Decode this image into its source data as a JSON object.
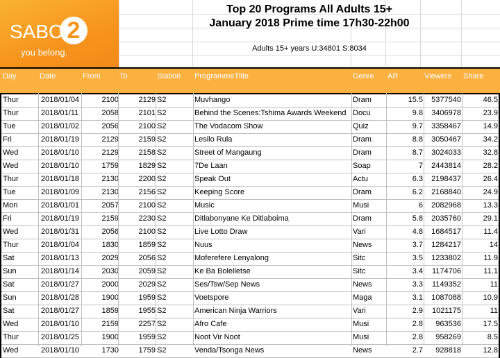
{
  "logo": {
    "brand": "SABC",
    "number": "2",
    "tagline": "you belong."
  },
  "title": {
    "line1": "Top 20 Programs All Adults 15+",
    "line2": "January 2018 Prime time 17h30-22h00",
    "subtitle": "Adults 15+ years U:34801 S:8034"
  },
  "columns": [
    "Day",
    "Date",
    "From",
    "To",
    "Station",
    "ProgrammeTitle",
    "Genre",
    "AR",
    "Viewers",
    "Share"
  ],
  "colors": {
    "header_bg": "#fbb040",
    "logo_orange": "#f7941d"
  },
  "rows": [
    {
      "day": "Thur",
      "date": "2018/01/04",
      "from": "2100",
      "to": "2129",
      "station": "S2",
      "title": "Muvhango",
      "genre": "Dram",
      "ar": "15.5",
      "viewers": "5377540",
      "share": "46.5"
    },
    {
      "day": "Thur",
      "date": "2018/01/11",
      "from": "2058",
      "to": "2101",
      "station": "S2",
      "title": "Behind the Scenes:Tshima Awards Weekend",
      "genre": "Docu",
      "ar": "9.8",
      "viewers": "3406978",
      "share": "23.9"
    },
    {
      "day": "Tue",
      "date": "2018/01/02",
      "from": "2056",
      "to": "2100",
      "station": "S2",
      "title": "The Vodacom Show",
      "genre": "Quiz",
      "ar": "9.7",
      "viewers": "3358467",
      "share": "14.9"
    },
    {
      "day": "Fri",
      "date": "2018/01/19",
      "from": "2129",
      "to": "2159",
      "station": "S2",
      "title": "Lesilo Rula",
      "genre": "Dram",
      "ar": "8.8",
      "viewers": "3050467",
      "share": "34.2"
    },
    {
      "day": "Wed",
      "date": "2018/01/10",
      "from": "2129",
      "to": "2158",
      "station": "S2",
      "title": "Street of Mangaung",
      "genre": "Dram",
      "ar": "8.7",
      "viewers": "3024033",
      "share": "32.8"
    },
    {
      "day": "Wed",
      "date": "2018/01/10",
      "from": "1759",
      "to": "1829",
      "station": "S2",
      "title": "7De Laan",
      "genre": "Soap",
      "ar": "7",
      "viewers": "2443814",
      "share": "28.2"
    },
    {
      "day": "Thur",
      "date": "2018/01/18",
      "from": "2130",
      "to": "2200",
      "station": "S2",
      "title": "Speak Out",
      "genre": "Actu",
      "ar": "6.3",
      "viewers": "2198437",
      "share": "26.4"
    },
    {
      "day": "Tue",
      "date": "2018/01/09",
      "from": "2130",
      "to": "2156",
      "station": "S2",
      "title": "Keeping Score",
      "genre": "Dram",
      "ar": "6.2",
      "viewers": "2168840",
      "share": "24.9"
    },
    {
      "day": "Mon",
      "date": "2018/01/01",
      "from": "2057",
      "to": "2100",
      "station": "S2",
      "title": "Music",
      "genre": "Musi",
      "ar": "6",
      "viewers": "2082968",
      "share": "13.3"
    },
    {
      "day": "Fri",
      "date": "2018/01/19",
      "from": "2159",
      "to": "2230",
      "station": "S2",
      "title": "Ditlabonyane Ke Ditlaboima",
      "genre": "Dram",
      "ar": "5.8",
      "viewers": "2035760",
      "share": "29.1"
    },
    {
      "day": "Wed",
      "date": "2018/01/31",
      "from": "2056",
      "to": "2100",
      "station": "S2",
      "title": "Live Lotto Draw",
      "genre": "Vari",
      "ar": "4.8",
      "viewers": "1684517",
      "share": "11.4"
    },
    {
      "day": "Thur",
      "date": "2018/01/04",
      "from": "1830",
      "to": "1859",
      "station": "S2",
      "title": "Nuus",
      "genre": "News",
      "ar": "3.7",
      "viewers": "1284217",
      "share": "14"
    },
    {
      "day": "Sat",
      "date": "2018/01/13",
      "from": "2029",
      "to": "2056",
      "station": "S2",
      "title": "Moferefere Lenyalong",
      "genre": "Sitc",
      "ar": "3.5",
      "viewers": "1233802",
      "share": "11.9"
    },
    {
      "day": "Sun",
      "date": "2018/01/14",
      "from": "2030",
      "to": "2059",
      "station": "S2",
      "title": "Ke Ba Bolelletse",
      "genre": "Sitc",
      "ar": "3.4",
      "viewers": "1174706",
      "share": "11.1"
    },
    {
      "day": "Sat",
      "date": "2018/01/27",
      "from": "2000",
      "to": "2029",
      "station": "S2",
      "title": "Ses/Tsw/Sep News",
      "genre": "News",
      "ar": "3.3",
      "viewers": "1149352",
      "share": "11"
    },
    {
      "day": "Sun",
      "date": "2018/01/28",
      "from": "1900",
      "to": "1959",
      "station": "S2",
      "title": "Voetspore",
      "genre": "Maga",
      "ar": "3.1",
      "viewers": "1087088",
      "share": "10.9"
    },
    {
      "day": "Sat",
      "date": "2018/01/27",
      "from": "1859",
      "to": "1955",
      "station": "S2",
      "title": "American Ninja Warriors",
      "genre": "Vari",
      "ar": "2.9",
      "viewers": "1021175",
      "share": "11"
    },
    {
      "day": "Wed",
      "date": "2018/01/10",
      "from": "2159",
      "to": "2257",
      "station": "S2",
      "title": "Afro Cafe",
      "genre": "Musi",
      "ar": "2.8",
      "viewers": "963536",
      "share": "17.5"
    },
    {
      "day": "Thur",
      "date": "2018/01/25",
      "from": "1900",
      "to": "1959",
      "station": "S2",
      "title": "Noot Vir Noot",
      "genre": "Musi",
      "ar": "2.8",
      "viewers": "958269",
      "share": "8.5"
    },
    {
      "day": "Wed",
      "date": "2018/01/10",
      "from": "1730",
      "to": "1759",
      "station": "S2",
      "title": "Venda/Tsonga News",
      "genre": "News",
      "ar": "2.7",
      "viewers": "928818",
      "share": "12.8"
    }
  ]
}
